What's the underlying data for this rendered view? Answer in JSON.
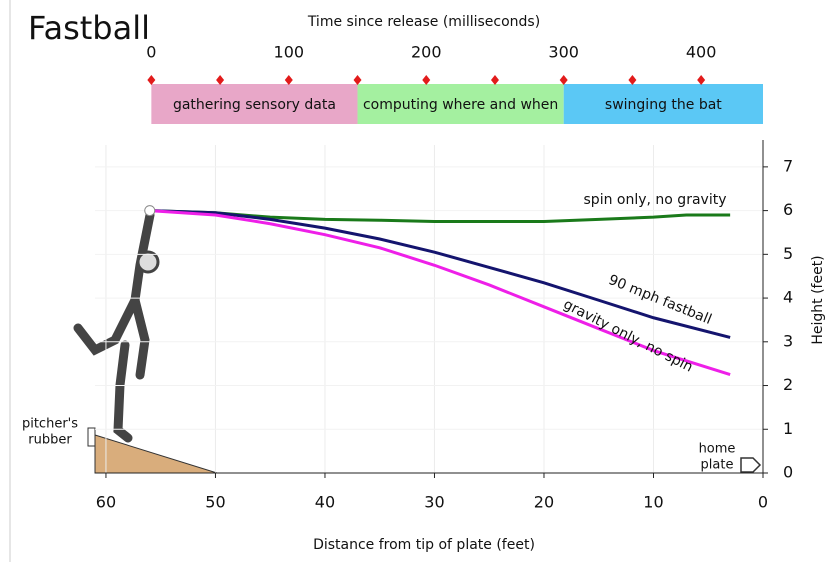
{
  "chart_data": {
    "type": "line",
    "title": "Fastball",
    "xlabel": "Distance from tip of plate (feet)",
    "x2label": "Time since release (milliseconds)",
    "ylabel": "Height (feet)",
    "xlim": [
      61,
      0
    ],
    "xticks": [
      60,
      50,
      40,
      30,
      20,
      10,
      0
    ],
    "x2lim": [
      -41,
      445
    ],
    "x2ticks": [
      0,
      100,
      200,
      300,
      400
    ],
    "x2minor_ticks": [
      50,
      150,
      250,
      350
    ],
    "ylim": [
      0,
      7.5
    ],
    "yticks": [
      0,
      1,
      2,
      3,
      4,
      5,
      6,
      7
    ],
    "grid": true,
    "phases": [
      {
        "label": "gathering sensory data",
        "start": 0,
        "end": 150,
        "color": "#e8a7c8"
      },
      {
        "label": "computing where and when",
        "start": 150,
        "end": 300,
        "color": "#a4f0a0"
      },
      {
        "label": "swinging the bat",
        "start": 300,
        "end": 445,
        "color": "#5bc8f5"
      }
    ],
    "series": [
      {
        "name": "spin only, no gravity",
        "color": "#1a7a1a",
        "x": [
          56,
          50,
          45,
          40,
          35,
          30,
          25,
          20,
          15,
          10,
          7,
          3
        ],
        "values": [
          6.0,
          5.95,
          5.85,
          5.8,
          5.78,
          5.75,
          5.75,
          5.75,
          5.8,
          5.85,
          5.9,
          5.9
        ]
      },
      {
        "name": "90 mph fastball",
        "color": "#14146e",
        "x": [
          56,
          50,
          45,
          40,
          35,
          30,
          25,
          20,
          15,
          10,
          3
        ],
        "values": [
          6.0,
          5.95,
          5.8,
          5.6,
          5.35,
          5.05,
          4.7,
          4.35,
          3.95,
          3.55,
          3.1
        ]
      },
      {
        "name": "gravity only, no spin",
        "color": "#ee1fe8",
        "x": [
          56,
          50,
          45,
          40,
          35,
          30,
          25,
          20,
          15,
          10,
          3
        ],
        "values": [
          6.0,
          5.9,
          5.7,
          5.45,
          5.15,
          4.75,
          4.3,
          3.8,
          3.3,
          2.8,
          2.25
        ]
      }
    ],
    "annotations": [
      {
        "lines": [
          "pitcher's",
          "rubber"
        ]
      },
      {
        "lines": [
          "home",
          "plate"
        ]
      }
    ]
  }
}
